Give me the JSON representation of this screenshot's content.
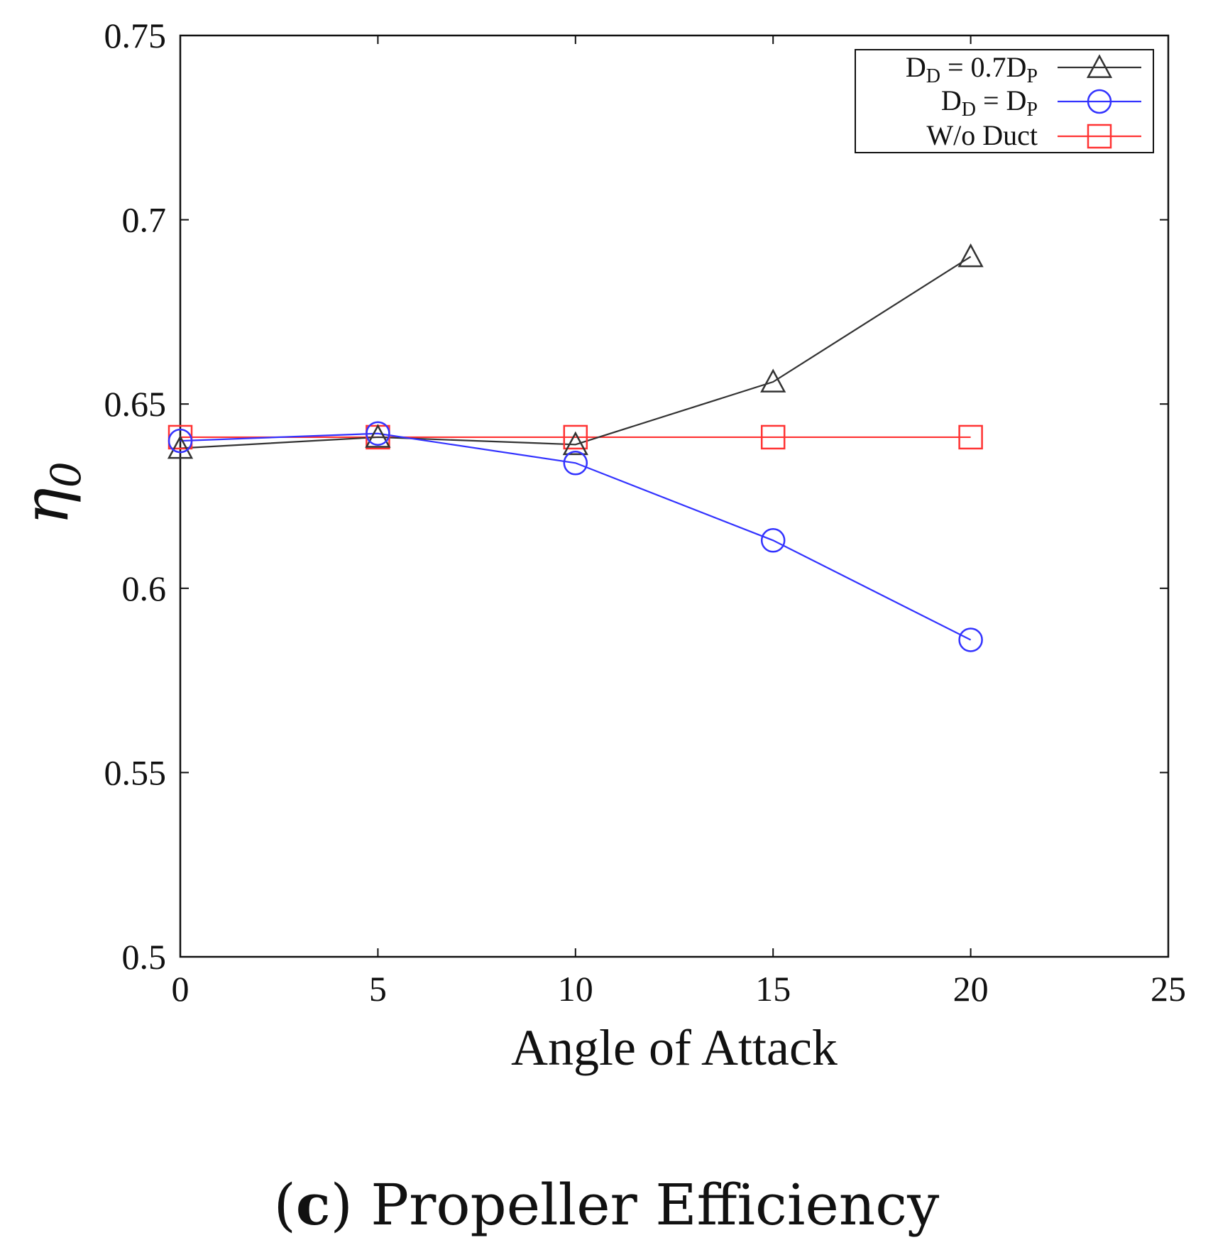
{
  "chart_data": {
    "type": "line",
    "title": "",
    "xlabel": "Angle of Attack",
    "ylabel_main": "η",
    "ylabel_sub": "0",
    "xlim": [
      0,
      25
    ],
    "ylim": [
      0.5,
      0.75
    ],
    "xticks": [
      0,
      5,
      10,
      15,
      20,
      25
    ],
    "xtick_labels": [
      "0",
      "5",
      "10",
      "15",
      "20",
      "25"
    ],
    "yticks": [
      0.5,
      0.55,
      0.6,
      0.65,
      0.7,
      0.75
    ],
    "ytick_labels": [
      "0.5",
      "0.55",
      "0.6",
      "0.65",
      "0.7",
      "0.75"
    ],
    "grid": false,
    "legend_position": "top-right",
    "series": [
      {
        "name": "D_D = 0.7D_P",
        "legend_parts": [
          "D",
          "D",
          " = 0.7D",
          "P"
        ],
        "color": "#333333",
        "marker": "triangle",
        "x": [
          0,
          5,
          10,
          15,
          20
        ],
        "y": [
          0.638,
          0.641,
          0.639,
          0.656,
          0.69
        ]
      },
      {
        "name": "D_D = D_P",
        "legend_parts": [
          "D",
          "D",
          " = D",
          "P"
        ],
        "color": "#3333ff",
        "marker": "circle",
        "x": [
          0,
          5,
          10,
          15,
          20
        ],
        "y": [
          0.64,
          0.642,
          0.634,
          0.613,
          0.586
        ]
      },
      {
        "name": "W/o Duct",
        "legend_parts": [
          "W/o Duct"
        ],
        "color": "#ff3333",
        "marker": "square",
        "x": [
          0,
          5,
          10,
          15,
          20
        ],
        "y": [
          0.641,
          0.641,
          0.641,
          0.641,
          0.641
        ]
      }
    ]
  },
  "caption": {
    "prefix": "(",
    "letter": "c",
    "suffix": ") Propeller Efficiency"
  }
}
